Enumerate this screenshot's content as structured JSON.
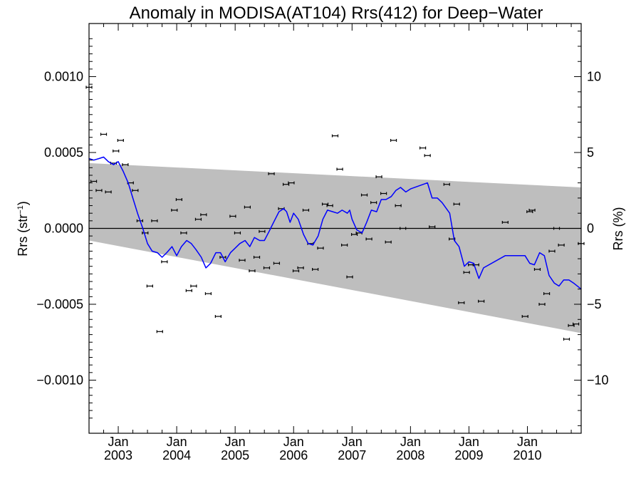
{
  "chart_data": {
    "type": "line",
    "title": "Anomaly in MODISA(AT104) Rrs(412) for Deep−Water",
    "ylabel": "Rrs (str",
    "ylabel_sup": "−1",
    "ylabel_close": ")",
    "y2label": "Rrs (%)",
    "xlim": [
      2002.5,
      2010.92
    ],
    "ylim": [
      -0.00135,
      0.00135
    ],
    "y2lim": [
      -13.5,
      13.5
    ],
    "yticks": [
      {
        "value": 0.001,
        "label": "0.0010"
      },
      {
        "value": 0.0005,
        "label": "0.0005"
      },
      {
        "value": 0.0,
        "label": "0.0000"
      },
      {
        "value": -0.0005,
        "label": "−0.0005"
      },
      {
        "value": -0.001,
        "label": "−0.0010"
      }
    ],
    "y2ticks": [
      {
        "value": 10,
        "label": "10"
      },
      {
        "value": 5,
        "label": "5"
      },
      {
        "value": 0,
        "label": "0"
      },
      {
        "value": -5,
        "label": "−5"
      },
      {
        "value": -10,
        "label": "−10"
      }
    ],
    "xticks": [
      {
        "value": 2003.0,
        "month": "Jan",
        "year": "2003"
      },
      {
        "value": 2004.0,
        "month": "Jan",
        "year": "2004"
      },
      {
        "value": 2005.0,
        "month": "Jan",
        "year": "2005"
      },
      {
        "value": 2006.0,
        "month": "Jan",
        "year": "2006"
      },
      {
        "value": 2007.0,
        "month": "Jan",
        "year": "2007"
      },
      {
        "value": 2008.0,
        "month": "Jan",
        "year": "2008"
      },
      {
        "value": 2009.0,
        "month": "Jan",
        "year": "2009"
      },
      {
        "value": 2010.0,
        "month": "Jan",
        "year": "2010"
      }
    ],
    "band": {
      "color": "#bebebe",
      "upper": [
        [
          2002.5,
          0.00043
        ],
        [
          2010.92,
          0.00027
        ]
      ],
      "lower": [
        [
          2002.5,
          -8e-05
        ],
        [
          2010.92,
          -0.00069
        ]
      ]
    },
    "zero_line": true,
    "series": [
      {
        "kind": "points_errorbar",
        "color": "#000000",
        "points": [
          [
            2002.5,
            0.00093
          ],
          [
            2002.58,
            0.00031
          ],
          [
            2002.67,
            0.00025
          ],
          [
            2002.75,
            0.00062
          ],
          [
            2002.83,
            0.00024
          ],
          [
            2002.92,
            0.00043
          ],
          [
            2002.96,
            0.00051
          ],
          [
            2003.04,
            0.00058
          ],
          [
            2003.12,
            0.00042
          ],
          [
            2003.21,
            0.0003
          ],
          [
            2003.29,
            0.00025
          ],
          [
            2003.37,
            5e-05
          ],
          [
            2003.46,
            -3e-05
          ],
          [
            2003.54,
            -0.00038
          ],
          [
            2003.62,
            5e-05
          ],
          [
            2003.71,
            -0.00068
          ],
          [
            2003.79,
            -0.00022
          ],
          [
            2003.96,
            0.00012
          ],
          [
            2004.04,
            0.00019
          ],
          [
            2004.12,
            -3e-05
          ],
          [
            2004.21,
            -0.00041
          ],
          [
            2004.29,
            -0.00038
          ],
          [
            2004.37,
            6e-05
          ],
          [
            2004.46,
            9e-05
          ],
          [
            2004.54,
            -0.00043
          ],
          [
            2004.71,
            -0.00058
          ],
          [
            2004.79,
            -0.00019
          ],
          [
            2004.96,
            8e-05
          ],
          [
            2005.04,
            -3e-05
          ],
          [
            2005.12,
            -0.00021
          ],
          [
            2005.21,
            0.00014
          ],
          [
            2005.29,
            -0.00028
          ],
          [
            2005.37,
            -0.00019
          ],
          [
            2005.46,
            -2e-05
          ],
          [
            2005.54,
            -0.00026
          ],
          [
            2005.62,
            0.00036
          ],
          [
            2005.71,
            -0.00023
          ],
          [
            2005.79,
            0.00013
          ],
          [
            2005.87,
            0.00029
          ],
          [
            2005.96,
            0.0003
          ],
          [
            2006.04,
            -0.00028
          ],
          [
            2006.12,
            -0.00026
          ],
          [
            2006.21,
            0.00012
          ],
          [
            2006.29,
            -0.0001
          ],
          [
            2006.37,
            -0.00027
          ],
          [
            2006.46,
            -0.00013
          ],
          [
            2006.54,
            0.00016
          ],
          [
            2006.62,
            0.00015
          ],
          [
            2006.71,
            0.00061
          ],
          [
            2006.79,
            0.00039
          ],
          [
            2006.87,
            -0.00011
          ],
          [
            2006.96,
            -0.00032
          ],
          [
            2007.04,
            -4e-05
          ],
          [
            2007.12,
            -3e-05
          ],
          [
            2007.21,
            0.00022
          ],
          [
            2007.29,
            -7e-05
          ],
          [
            2007.37,
            0.00017
          ],
          [
            2007.46,
            0.00034
          ],
          [
            2007.54,
            0.00023
          ],
          [
            2007.62,
            -9e-05
          ],
          [
            2007.71,
            0.00058
          ],
          [
            2007.79,
            0.00015
          ],
          [
            2007.87,
            0.0
          ],
          [
            2008.21,
            0.00053
          ],
          [
            2008.29,
            0.00048
          ],
          [
            2008.37,
            1e-05
          ],
          [
            2008.62,
            0.00029
          ],
          [
            2008.71,
            -7e-05
          ],
          [
            2008.79,
            0.00016
          ],
          [
            2008.87,
            -0.00049
          ],
          [
            2008.96,
            -0.00029
          ],
          [
            2009.04,
            -0.00024
          ],
          [
            2009.12,
            -0.00024
          ],
          [
            2009.21,
            -0.00048
          ],
          [
            2009.62,
            4e-05
          ],
          [
            2009.96,
            -0.00058
          ],
          [
            2010.04,
            0.00011
          ],
          [
            2010.08,
            0.00012
          ],
          [
            2010.17,
            -0.00027
          ],
          [
            2010.25,
            -0.0005
          ],
          [
            2010.33,
            -0.00043
          ],
          [
            2010.42,
            -0.00015
          ],
          [
            2010.5,
            0.0
          ],
          [
            2010.58,
            -0.00011
          ],
          [
            2010.67,
            -0.00073
          ],
          [
            2010.75,
            -0.00064
          ],
          [
            2010.83,
            -0.00063
          ],
          [
            2010.92,
            -0.0001
          ]
        ]
      },
      {
        "kind": "line",
        "color": "#0000ff",
        "points": [
          [
            2002.5,
            0.00046
          ],
          [
            2002.58,
            0.00045
          ],
          [
            2002.67,
            0.00046
          ],
          [
            2002.75,
            0.00047
          ],
          [
            2002.83,
            0.00044
          ],
          [
            2002.92,
            0.00042
          ],
          [
            2003.0,
            0.00044
          ],
          [
            2003.08,
            0.00038
          ],
          [
            2003.17,
            0.0003
          ],
          [
            2003.25,
            0.0002
          ],
          [
            2003.33,
            0.0001
          ],
          [
            2003.42,
            0.0
          ],
          [
            2003.5,
            -0.0001
          ],
          [
            2003.58,
            -0.00015
          ],
          [
            2003.67,
            -0.00016
          ],
          [
            2003.75,
            -0.00019
          ],
          [
            2003.83,
            -0.00016
          ],
          [
            2003.92,
            -0.00012
          ],
          [
            2004.0,
            -0.00018
          ],
          [
            2004.08,
            -0.00012
          ],
          [
            2004.17,
            -8e-05
          ],
          [
            2004.25,
            -0.0001
          ],
          [
            2004.33,
            -0.00014
          ],
          [
            2004.42,
            -0.00019
          ],
          [
            2004.5,
            -0.00026
          ],
          [
            2004.58,
            -0.00023
          ],
          [
            2004.67,
            -0.00016
          ],
          [
            2004.75,
            -0.00016
          ],
          [
            2004.83,
            -0.00022
          ],
          [
            2004.92,
            -0.00016
          ],
          [
            2005.0,
            -0.00013
          ],
          [
            2005.08,
            -0.0001
          ],
          [
            2005.17,
            -8e-05
          ],
          [
            2005.25,
            -0.00012
          ],
          [
            2005.33,
            -6e-05
          ],
          [
            2005.42,
            -8e-05
          ],
          [
            2005.5,
            -8e-05
          ],
          [
            2005.58,
            -2e-05
          ],
          [
            2005.67,
            5e-05
          ],
          [
            2005.75,
            0.00011
          ],
          [
            2005.83,
            0.00013
          ],
          [
            2005.88,
            0.00011
          ],
          [
            2005.94,
            4e-05
          ],
          [
            2006.0,
            0.0001
          ],
          [
            2006.08,
            6e-05
          ],
          [
            2006.17,
            -4e-05
          ],
          [
            2006.25,
            -0.0001
          ],
          [
            2006.33,
            -0.00011
          ],
          [
            2006.42,
            -5e-05
          ],
          [
            2006.5,
            6e-05
          ],
          [
            2006.58,
            0.00012
          ],
          [
            2006.67,
            0.00011
          ],
          [
            2006.75,
            0.0001
          ],
          [
            2006.83,
            0.00012
          ],
          [
            2006.92,
            0.0001
          ],
          [
            2006.96,
            0.00012
          ],
          [
            2007.0,
            6e-05
          ],
          [
            2007.08,
            -1e-05
          ],
          [
            2007.17,
            -3e-05
          ],
          [
            2007.25,
            4e-05
          ],
          [
            2007.33,
            0.00012
          ],
          [
            2007.42,
            0.00011
          ],
          [
            2007.5,
            0.00019
          ],
          [
            2007.58,
            0.00019
          ],
          [
            2007.67,
            0.00021
          ],
          [
            2007.75,
            0.00025
          ],
          [
            2007.83,
            0.00027
          ],
          [
            2007.92,
            0.00024
          ],
          [
            2008.0,
            0.00026
          ],
          [
            2008.29,
            0.0003
          ],
          [
            2008.37,
            0.0002
          ],
          [
            2008.46,
            0.0002
          ],
          [
            2008.54,
            0.00017
          ],
          [
            2008.67,
            0.0001
          ],
          [
            2008.75,
            -8e-05
          ],
          [
            2008.83,
            -0.00012
          ],
          [
            2008.92,
            -0.00025
          ],
          [
            2009.0,
            -0.00022
          ],
          [
            2009.08,
            -0.00023
          ],
          [
            2009.17,
            -0.00033
          ],
          [
            2009.25,
            -0.00026
          ],
          [
            2009.62,
            -0.00018
          ],
          [
            2009.96,
            -0.00018
          ],
          [
            2010.04,
            -0.00023
          ],
          [
            2010.12,
            -0.00024
          ],
          [
            2010.21,
            -0.00016
          ],
          [
            2010.29,
            -0.00018
          ],
          [
            2010.37,
            -0.00031
          ],
          [
            2010.46,
            -0.00036
          ],
          [
            2010.54,
            -0.00038
          ],
          [
            2010.62,
            -0.00034
          ],
          [
            2010.71,
            -0.00034
          ],
          [
            2010.79,
            -0.00036
          ],
          [
            2010.92,
            -0.0004
          ]
        ]
      }
    ]
  }
}
